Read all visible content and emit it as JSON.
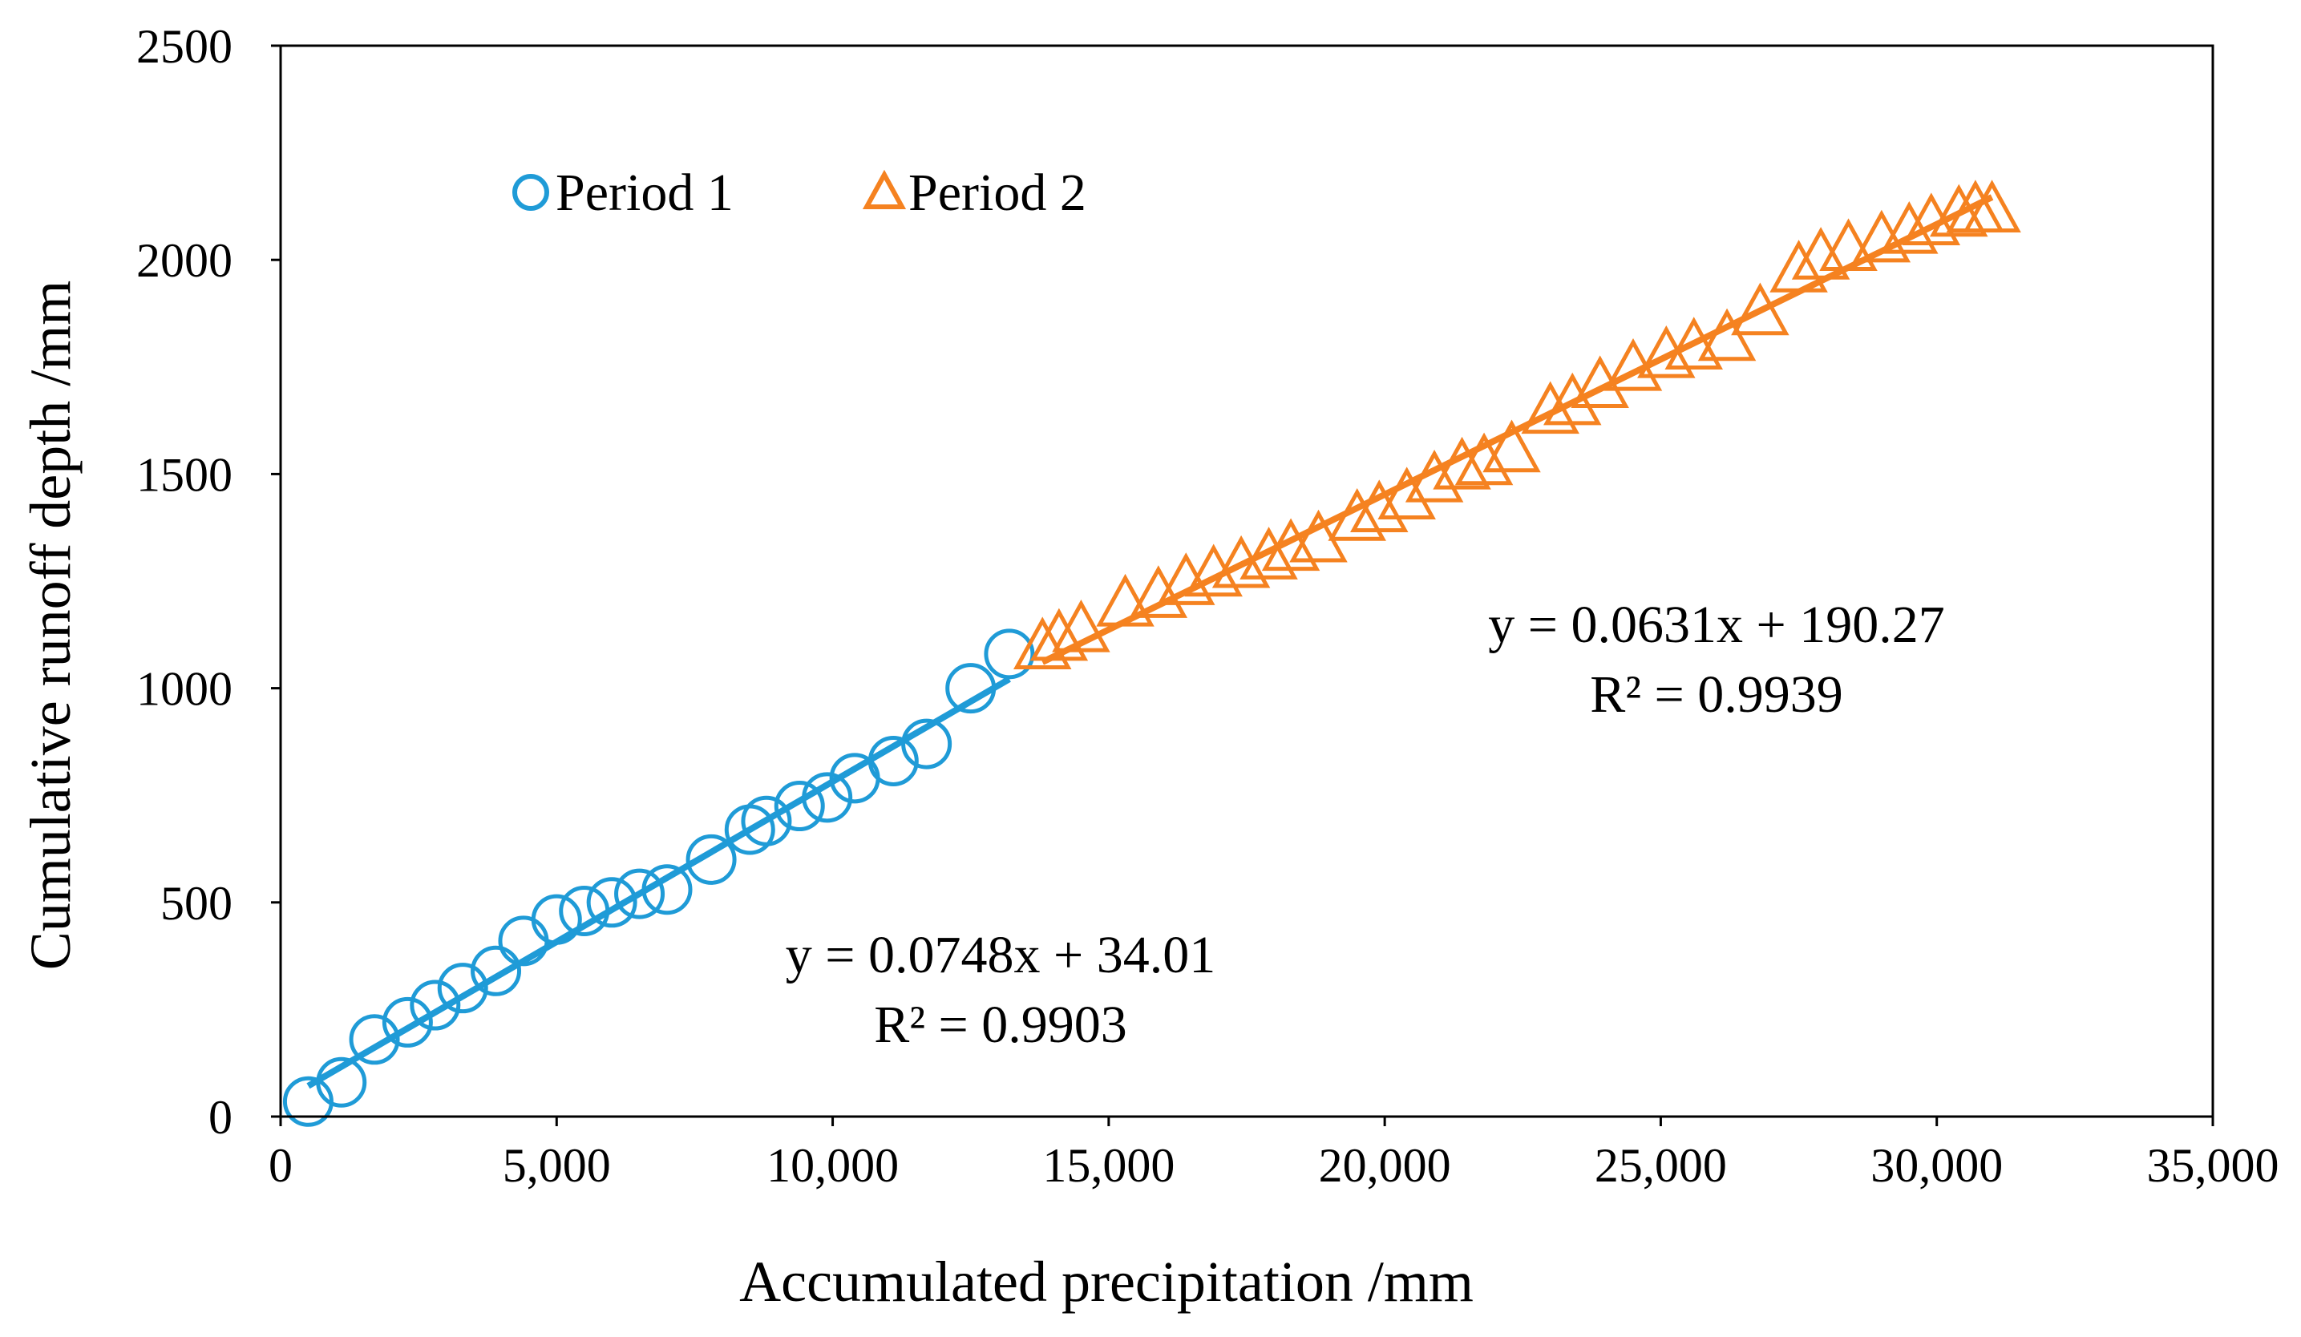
{
  "chart_data": {
    "type": "scatter",
    "title": "",
    "xlabel": "Accumulated precipitation /mm",
    "ylabel": "Cumulative runoff depth /mm",
    "xlim": [
      0,
      35000
    ],
    "ylim": [
      0,
      2500
    ],
    "x_ticks": [
      0,
      5000,
      10000,
      15000,
      20000,
      25000,
      30000,
      35000
    ],
    "x_tick_labels": [
      "0",
      "5,000",
      "10,000",
      "15,000",
      "20,000",
      "25,000",
      "30,000",
      "35,000"
    ],
    "y_ticks": [
      0,
      500,
      1000,
      1500,
      2000,
      2500
    ],
    "y_tick_labels": [
      "0",
      "500",
      "1000",
      "1500",
      "2000",
      "2500"
    ],
    "grid": false,
    "legend_position": "top-left",
    "series": [
      {
        "name": "Period 1",
        "marker": "circle",
        "color": "#1f9bd7",
        "x": [
          500,
          1100,
          1700,
          2300,
          2800,
          3300,
          3900,
          4400,
          5000,
          5500,
          6000,
          6500,
          7000,
          7800,
          8500,
          8800,
          9400,
          9900,
          10400,
          11100,
          11700,
          12500,
          13200
        ],
        "y": [
          35,
          80,
          180,
          220,
          260,
          300,
          340,
          410,
          460,
          480,
          500,
          520,
          530,
          600,
          670,
          690,
          725,
          745,
          790,
          830,
          870,
          1000,
          1080
        ],
        "trendline": {
          "slope": 0.0748,
          "intercept": 34.01,
          "x_range": [
            500,
            13200
          ],
          "equation": "y = 0.0748x + 34.01",
          "r2": "R² = 0.9903"
        }
      },
      {
        "name": "Period 2",
        "marker": "triangle",
        "color": "#f58220",
        "x": [
          13800,
          14100,
          14500,
          15300,
          15900,
          16400,
          16900,
          17400,
          17900,
          18300,
          18800,
          19500,
          19900,
          20400,
          20900,
          21400,
          21800,
          22300,
          23000,
          23400,
          23900,
          24500,
          25100,
          25600,
          26200,
          26800,
          27500,
          27900,
          28400,
          29000,
          29500,
          29900,
          30400,
          30700,
          31000
        ],
        "y": [
          1090,
          1110,
          1130,
          1190,
          1210,
          1240,
          1260,
          1280,
          1300,
          1320,
          1340,
          1390,
          1410,
          1440,
          1480,
          1510,
          1520,
          1550,
          1640,
          1660,
          1700,
          1740,
          1770,
          1790,
          1810,
          1870,
          1970,
          2000,
          2020,
          2040,
          2060,
          2080,
          2100,
          2110,
          2110
        ],
        "trendline": {
          "slope": 0.0631,
          "intercept": 190.27,
          "x_range": [
            13800,
            31000
          ],
          "equation": "y = 0.0631x + 190.27",
          "r2": "R² = 0.9939"
        }
      }
    ]
  }
}
